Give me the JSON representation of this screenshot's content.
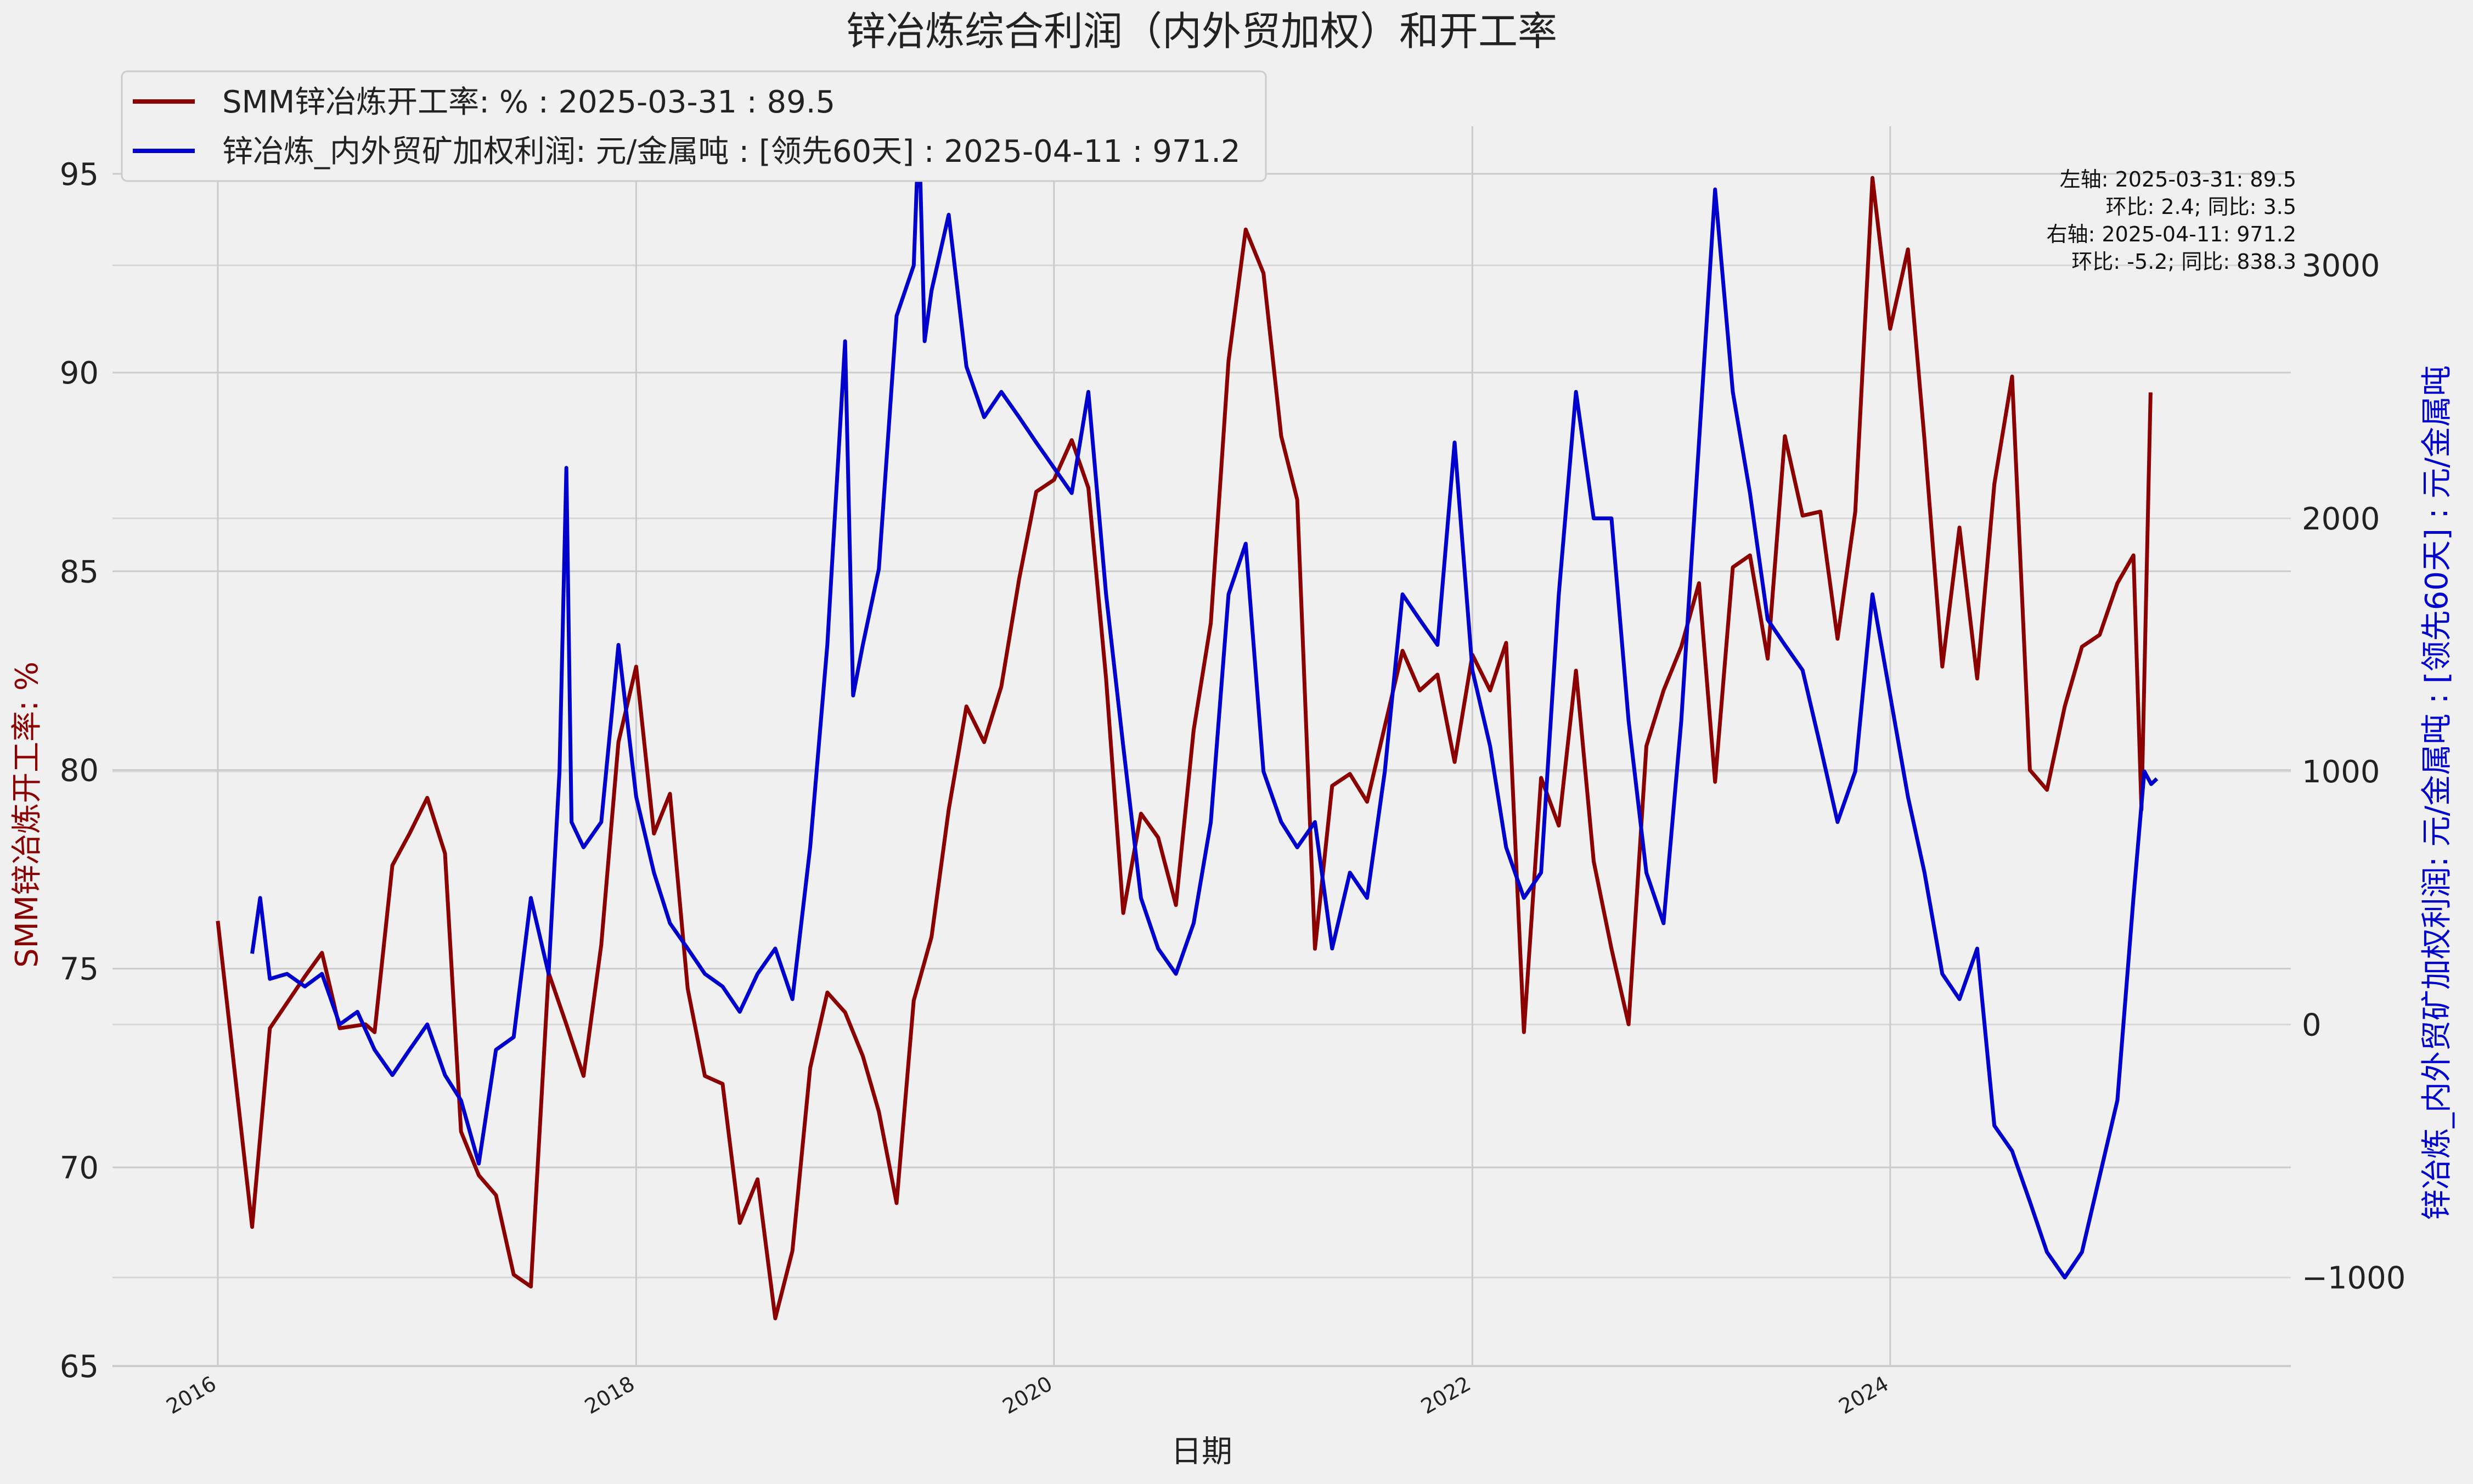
{
  "chart_data": {
    "type": "line",
    "title": "锌冶炼综合利润（内外贸加权）和开工率",
    "xlabel": "日期",
    "x_ticks": [
      "2016",
      "2018",
      "2020",
      "2022",
      "2024"
    ],
    "left_axis": {
      "label": "SMM锌冶炼开工率: %",
      "color": "#8b0000",
      "ylim": [
        65,
        96.2
      ],
      "ticks": [
        65,
        70,
        75,
        80,
        85,
        90,
        95
      ]
    },
    "right_axis": {
      "label": "锌冶炼_内外贸矿加权利润: 元/金属吨 : [领先60天] : 元/金属吨",
      "color": "#0000cd",
      "ylim": [
        -1350,
        3550
      ],
      "ticks": [
        -1000,
        0,
        1000,
        2000,
        3000
      ],
      "tick_labels": [
        "−1000",
        "0",
        "1000",
        "2000",
        "3000"
      ]
    },
    "legend": {
      "placement": "top-left",
      "entries": [
        {
          "label": "SMM锌冶炼开工率: % : 2025-03-31 : 89.5",
          "color": "#8b0000"
        },
        {
          "label": "锌冶炼_内外贸矿加权利润: 元/金属吨 : [领先60天]  : 2025-04-11 : 971.2",
          "color": "#0000cd"
        }
      ]
    },
    "annotation": [
      "左轴:  2025-03-31: 89.5",
      "环比: 2.4; 同比: 3.5",
      "右轴:  2025-04-11: 971.2",
      "环比: -5.2; 同比: 838.3"
    ],
    "grid": true,
    "series": [
      {
        "name": "SMM锌冶炼开工率: %",
        "axis": "left",
        "color": "#8b0000",
        "points": [
          [
            "2016-01-01",
            76.2
          ],
          [
            "2016-03-01",
            68.5
          ],
          [
            "2016-04-01",
            73.5
          ],
          [
            "2016-06-01",
            74.8
          ],
          [
            "2016-07-01",
            75.4
          ],
          [
            "2016-08-01",
            73.5
          ],
          [
            "2016-09-15",
            73.6
          ],
          [
            "2016-10-01",
            73.4
          ],
          [
            "2016-11-01",
            77.6
          ],
          [
            "2016-12-01",
            78.4
          ],
          [
            "2017-01-01",
            79.3
          ],
          [
            "2017-02-01",
            77.9
          ],
          [
            "2017-03-01",
            70.9
          ],
          [
            "2017-04-01",
            69.8
          ],
          [
            "2017-05-01",
            69.3
          ],
          [
            "2017-06-01",
            67.3
          ],
          [
            "2017-07-01",
            67.0
          ],
          [
            "2017-08-01",
            74.9
          ],
          [
            "2017-09-01",
            73.6
          ],
          [
            "2017-10-01",
            72.3
          ],
          [
            "2017-11-01",
            75.6
          ],
          [
            "2017-12-01",
            80.7
          ],
          [
            "2018-01-01",
            82.6
          ],
          [
            "2018-02-01",
            78.4
          ],
          [
            "2018-03-01",
            79.4
          ],
          [
            "2018-04-01",
            74.5
          ],
          [
            "2018-05-01",
            72.3
          ],
          [
            "2018-06-01",
            72.1
          ],
          [
            "2018-07-01",
            68.6
          ],
          [
            "2018-08-01",
            69.7
          ],
          [
            "2018-09-01",
            66.2
          ],
          [
            "2018-10-01",
            67.9
          ],
          [
            "2018-11-01",
            72.5
          ],
          [
            "2018-12-01",
            74.4
          ],
          [
            "2019-01-01",
            73.9
          ],
          [
            "2019-02-01",
            72.8
          ],
          [
            "2019-03-01",
            71.4
          ],
          [
            "2019-04-01",
            69.1
          ],
          [
            "2019-05-01",
            74.2
          ],
          [
            "2019-06-01",
            75.8
          ],
          [
            "2019-07-01",
            79.0
          ],
          [
            "2019-08-01",
            81.6
          ],
          [
            "2019-09-01",
            80.7
          ],
          [
            "2019-10-01",
            82.1
          ],
          [
            "2019-11-01",
            84.8
          ],
          [
            "2019-12-01",
            87.0
          ],
          [
            "2020-01-01",
            87.3
          ],
          [
            "2020-02-01",
            88.3
          ],
          [
            "2020-03-01",
            87.1
          ],
          [
            "2020-04-01",
            82.3
          ],
          [
            "2020-05-01",
            76.4
          ],
          [
            "2020-06-01",
            78.9
          ],
          [
            "2020-07-01",
            78.3
          ],
          [
            "2020-08-01",
            76.6
          ],
          [
            "2020-09-01",
            81.0
          ],
          [
            "2020-10-01",
            83.7
          ],
          [
            "2020-11-01",
            90.3
          ],
          [
            "2020-12-01",
            93.6
          ],
          [
            "2021-01-01",
            92.5
          ],
          [
            "2021-02-01",
            88.4
          ],
          [
            "2021-03-01",
            86.8
          ],
          [
            "2021-04-01",
            75.5
          ],
          [
            "2021-05-01",
            79.6
          ],
          [
            "2021-06-01",
            79.9
          ],
          [
            "2021-07-01",
            79.2
          ],
          [
            "2021-08-01",
            81.1
          ],
          [
            "2021-09-01",
            83.0
          ],
          [
            "2021-10-01",
            82.0
          ],
          [
            "2021-11-01",
            82.4
          ],
          [
            "2021-12-01",
            80.2
          ],
          [
            "2022-01-01",
            82.9
          ],
          [
            "2022-02-01",
            82.0
          ],
          [
            "2022-03-01",
            83.2
          ],
          [
            "2022-04-01",
            73.4
          ],
          [
            "2022-05-01",
            79.8
          ],
          [
            "2022-06-01",
            78.6
          ],
          [
            "2022-07-01",
            82.5
          ],
          [
            "2022-08-01",
            77.7
          ],
          [
            "2022-09-01",
            75.5
          ],
          [
            "2022-10-01",
            73.6
          ],
          [
            "2022-11-01",
            80.6
          ],
          [
            "2022-12-01",
            82.0
          ],
          [
            "2023-01-01",
            83.1
          ],
          [
            "2023-02-01",
            84.7
          ],
          [
            "2023-03-01",
            79.7
          ],
          [
            "2023-04-01",
            85.1
          ],
          [
            "2023-05-01",
            85.4
          ],
          [
            "2023-06-01",
            82.8
          ],
          [
            "2023-07-01",
            88.4
          ],
          [
            "2023-08-01",
            86.4
          ],
          [
            "2023-09-01",
            86.5
          ],
          [
            "2023-10-01",
            83.3
          ],
          [
            "2023-11-01",
            86.5
          ],
          [
            "2023-12-01",
            94.9
          ],
          [
            "2024-01-01",
            91.1
          ],
          [
            "2024-02-01",
            93.1
          ],
          [
            "2024-03-01",
            88.3
          ],
          [
            "2024-04-01",
            82.6
          ],
          [
            "2024-05-01",
            86.1
          ],
          [
            "2024-06-01",
            82.3
          ],
          [
            "2024-07-01",
            87.2
          ],
          [
            "2024-08-01",
            89.9
          ],
          [
            "2024-09-01",
            80.0
          ],
          [
            "2024-10-01",
            79.5
          ],
          [
            "2024-11-01",
            81.6
          ],
          [
            "2024-12-01",
            83.1
          ],
          [
            "2025-01-01",
            83.4
          ],
          [
            "2025-02-01",
            84.7
          ],
          [
            "2025-03-01",
            85.4
          ],
          [
            "2025-03-15",
            79.0
          ],
          [
            "2025-03-31",
            89.5
          ]
        ]
      },
      {
        "name": "锌冶炼_内外贸矿加权利润: 元/金属吨 : [领先60天]",
        "axis": "right",
        "color": "#0000cd",
        "points": [
          [
            "2016-03-01",
            280
          ],
          [
            "2016-03-15",
            500
          ],
          [
            "2016-04-01",
            180
          ],
          [
            "2016-05-01",
            200
          ],
          [
            "2016-06-01",
            150
          ],
          [
            "2016-07-01",
            200
          ],
          [
            "2016-08-01",
            0
          ],
          [
            "2016-09-01",
            50
          ],
          [
            "2016-10-01",
            -100
          ],
          [
            "2016-11-01",
            -200
          ],
          [
            "2016-12-01",
            -100
          ],
          [
            "2017-01-01",
            0
          ],
          [
            "2017-02-01",
            -200
          ],
          [
            "2017-03-01",
            -300
          ],
          [
            "2017-04-01",
            -550
          ],
          [
            "2017-05-01",
            -100
          ],
          [
            "2017-06-01",
            -50
          ],
          [
            "2017-07-01",
            500
          ],
          [
            "2017-08-01",
            200
          ],
          [
            "2017-08-20",
            1000
          ],
          [
            "2017-09-01",
            2200
          ],
          [
            "2017-09-10",
            800
          ],
          [
            "2017-10-01",
            700
          ],
          [
            "2017-11-01",
            800
          ],
          [
            "2017-12-01",
            1500
          ],
          [
            "2018-01-01",
            900
          ],
          [
            "2018-02-01",
            600
          ],
          [
            "2018-03-01",
            400
          ],
          [
            "2018-04-01",
            300
          ],
          [
            "2018-05-01",
            200
          ],
          [
            "2018-06-01",
            150
          ],
          [
            "2018-07-01",
            50
          ],
          [
            "2018-08-01",
            200
          ],
          [
            "2018-09-01",
            300
          ],
          [
            "2018-10-01",
            100
          ],
          [
            "2018-11-01",
            700
          ],
          [
            "2018-12-01",
            1500
          ],
          [
            "2019-01-01",
            2700
          ],
          [
            "2019-01-15",
            1300
          ],
          [
            "2019-02-01",
            1500
          ],
          [
            "2019-03-01",
            1800
          ],
          [
            "2019-04-01",
            2800
          ],
          [
            "2019-05-01",
            3000
          ],
          [
            "2019-05-10",
            3550
          ],
          [
            "2019-05-20",
            2700
          ],
          [
            "2019-06-01",
            2900
          ],
          [
            "2019-07-01",
            3200
          ],
          [
            "2019-08-01",
            2600
          ],
          [
            "2019-09-01",
            2400
          ],
          [
            "2019-10-01",
            2500
          ],
          [
            "2019-11-01",
            2400
          ],
          [
            "2019-12-01",
            2300
          ],
          [
            "2020-01-01",
            2200
          ],
          [
            "2020-02-01",
            2100
          ],
          [
            "2020-03-01",
            2500
          ],
          [
            "2020-04-01",
            1700
          ],
          [
            "2020-05-01",
            1100
          ],
          [
            "2020-06-01",
            500
          ],
          [
            "2020-07-01",
            300
          ],
          [
            "2020-08-01",
            200
          ],
          [
            "2020-09-01",
            400
          ],
          [
            "2020-10-01",
            800
          ],
          [
            "2020-11-01",
            1700
          ],
          [
            "2020-12-01",
            1900
          ],
          [
            "2021-01-01",
            1000
          ],
          [
            "2021-02-01",
            800
          ],
          [
            "2021-03-01",
            700
          ],
          [
            "2021-04-01",
            800
          ],
          [
            "2021-05-01",
            300
          ],
          [
            "2021-06-01",
            600
          ],
          [
            "2021-07-01",
            500
          ],
          [
            "2021-08-01",
            1000
          ],
          [
            "2021-09-01",
            1700
          ],
          [
            "2021-10-01",
            1600
          ],
          [
            "2021-11-01",
            1500
          ],
          [
            "2021-12-01",
            2300
          ],
          [
            "2022-01-01",
            1400
          ],
          [
            "2022-02-01",
            1100
          ],
          [
            "2022-03-01",
            700
          ],
          [
            "2022-04-01",
            500
          ],
          [
            "2022-05-01",
            600
          ],
          [
            "2022-06-01",
            1700
          ],
          [
            "2022-07-01",
            2500
          ],
          [
            "2022-08-01",
            2000
          ],
          [
            "2022-09-01",
            2000
          ],
          [
            "2022-10-01",
            1200
          ],
          [
            "2022-11-01",
            600
          ],
          [
            "2022-12-01",
            400
          ],
          [
            "2023-01-01",
            1200
          ],
          [
            "2023-02-01",
            2300
          ],
          [
            "2023-03-01",
            3300
          ],
          [
            "2023-04-01",
            2500
          ],
          [
            "2023-05-01",
            2100
          ],
          [
            "2023-06-01",
            1600
          ],
          [
            "2023-07-01",
            1500
          ],
          [
            "2023-08-01",
            1400
          ],
          [
            "2023-09-01",
            1100
          ],
          [
            "2023-10-01",
            800
          ],
          [
            "2023-11-01",
            1000
          ],
          [
            "2023-12-01",
            1700
          ],
          [
            "2024-01-01",
            1300
          ],
          [
            "2024-02-01",
            900
          ],
          [
            "2024-03-01",
            600
          ],
          [
            "2024-04-01",
            200
          ],
          [
            "2024-05-01",
            100
          ],
          [
            "2024-06-01",
            300
          ],
          [
            "2024-07-01",
            -400
          ],
          [
            "2024-08-01",
            -500
          ],
          [
            "2024-09-01",
            -700
          ],
          [
            "2024-10-01",
            -900
          ],
          [
            "2024-11-01",
            -1000
          ],
          [
            "2024-12-01",
            -900
          ],
          [
            "2025-01-01",
            -600
          ],
          [
            "2025-02-01",
            -300
          ],
          [
            "2025-03-01",
            500
          ],
          [
            "2025-03-20",
            1000
          ],
          [
            "2025-04-01",
            950
          ],
          [
            "2025-04-11",
            971.2
          ]
        ]
      }
    ]
  }
}
